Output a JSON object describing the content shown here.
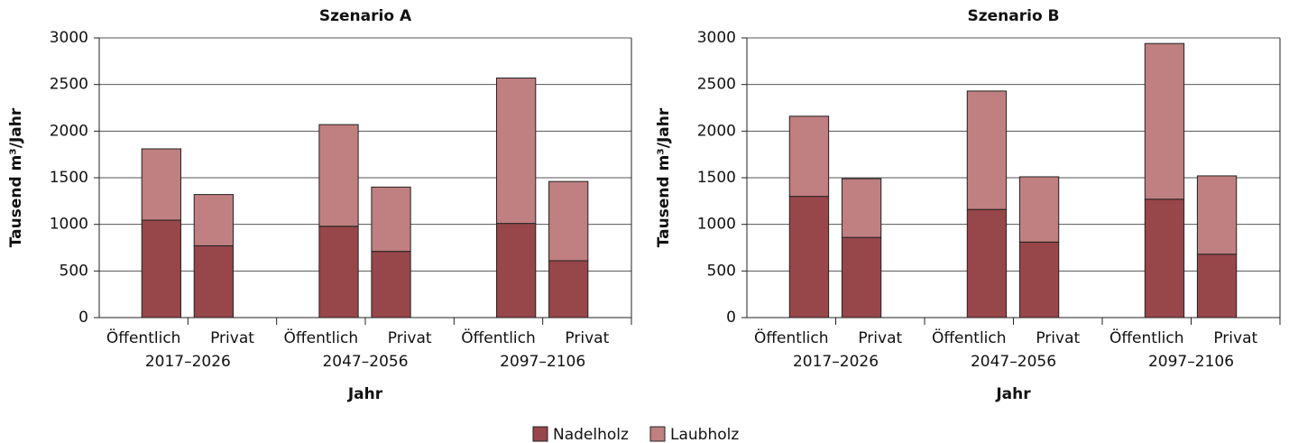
{
  "chart_data": [
    {
      "type": "bar",
      "stacked": true,
      "title": "Szenario A",
      "x_label": "Jahr",
      "y_label": "Tausend m³/Jahr",
      "categories": [
        "Öffentlich",
        "Privat",
        "Öffentlich",
        "Privat",
        "Öffentlich",
        "Privat"
      ],
      "groups": [
        "2017–2026",
        "2047–2056",
        "2097–2106"
      ],
      "series": [
        {
          "name": "Nadelholz",
          "color": "#97464a",
          "values": [
            1045,
            770,
            980,
            710,
            1010,
            610
          ]
        },
        {
          "name": "Laubholz",
          "color": "#c07f80",
          "values": [
            765,
            550,
            1090,
            690,
            1560,
            850
          ]
        }
      ],
      "ylim": [
        0,
        3000
      ],
      "yticks": [
        0,
        500,
        1000,
        1500,
        2000,
        2500,
        3000
      ],
      "grid": true
    },
    {
      "type": "bar",
      "stacked": true,
      "title": "Szenario B",
      "x_label": "Jahr",
      "y_label": "Tausend m³/Jahr",
      "categories": [
        "Öffentlich",
        "Privat",
        "Öffentlich",
        "Privat",
        "Öffentlich",
        "Privat"
      ],
      "groups": [
        "2017–2026",
        "2047–2056",
        "2097–2106"
      ],
      "series": [
        {
          "name": "Nadelholz",
          "color": "#97464a",
          "values": [
            1300,
            860,
            1160,
            810,
            1270,
            680
          ]
        },
        {
          "name": "Laubholz",
          "color": "#c07f80",
          "values": [
            860,
            630,
            1270,
            700,
            1670,
            840
          ]
        }
      ],
      "ylim": [
        0,
        3000
      ],
      "yticks": [
        0,
        500,
        1000,
        1500,
        2000,
        2500,
        3000
      ],
      "grid": true
    }
  ]
}
